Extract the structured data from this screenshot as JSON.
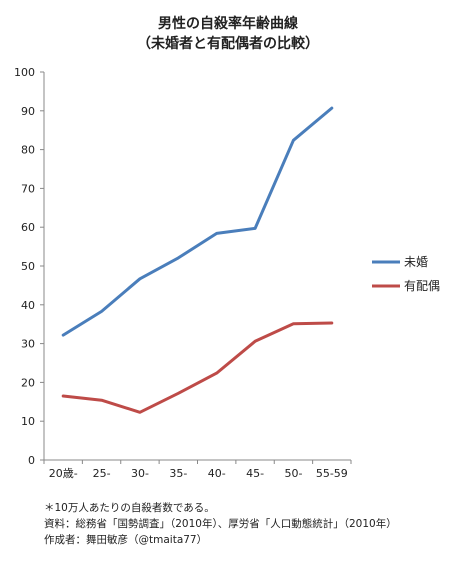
{
  "chart_data": {
    "type": "line",
    "title": "男性の自殺率年齢曲線",
    "subtitle": "（未婚者と有配偶者の比較）",
    "categories": [
      "20歳-",
      "25-",
      "30-",
      "35-",
      "40-",
      "45-",
      "50-",
      "55-59"
    ],
    "series": [
      {
        "name": "未婚",
        "color": "#4a7ebb",
        "values": [
          32.2,
          38.3,
          46.7,
          52.1,
          58.4,
          59.7,
          82.4,
          90.7
        ]
      },
      {
        "name": "有配偶",
        "color": "#be4b48",
        "values": [
          16.5,
          15.4,
          12.3,
          17.2,
          22.4,
          30.6,
          35.1,
          35.3
        ]
      }
    ],
    "ylim": [
      0,
      100
    ],
    "yticks": [
      0,
      10,
      20,
      30,
      40,
      50,
      60,
      70,
      80,
      90,
      100
    ],
    "grid": false,
    "legend": "right",
    "xlabel": "",
    "ylabel": ""
  },
  "notes": [
    "＊10万人あたりの自殺者数である。",
    "資料：総務省「国勢調査」（2010年）、厚労省「人口動態統計」（2010年）",
    "作成者：舞田敏彦（@tmaita77）"
  ]
}
